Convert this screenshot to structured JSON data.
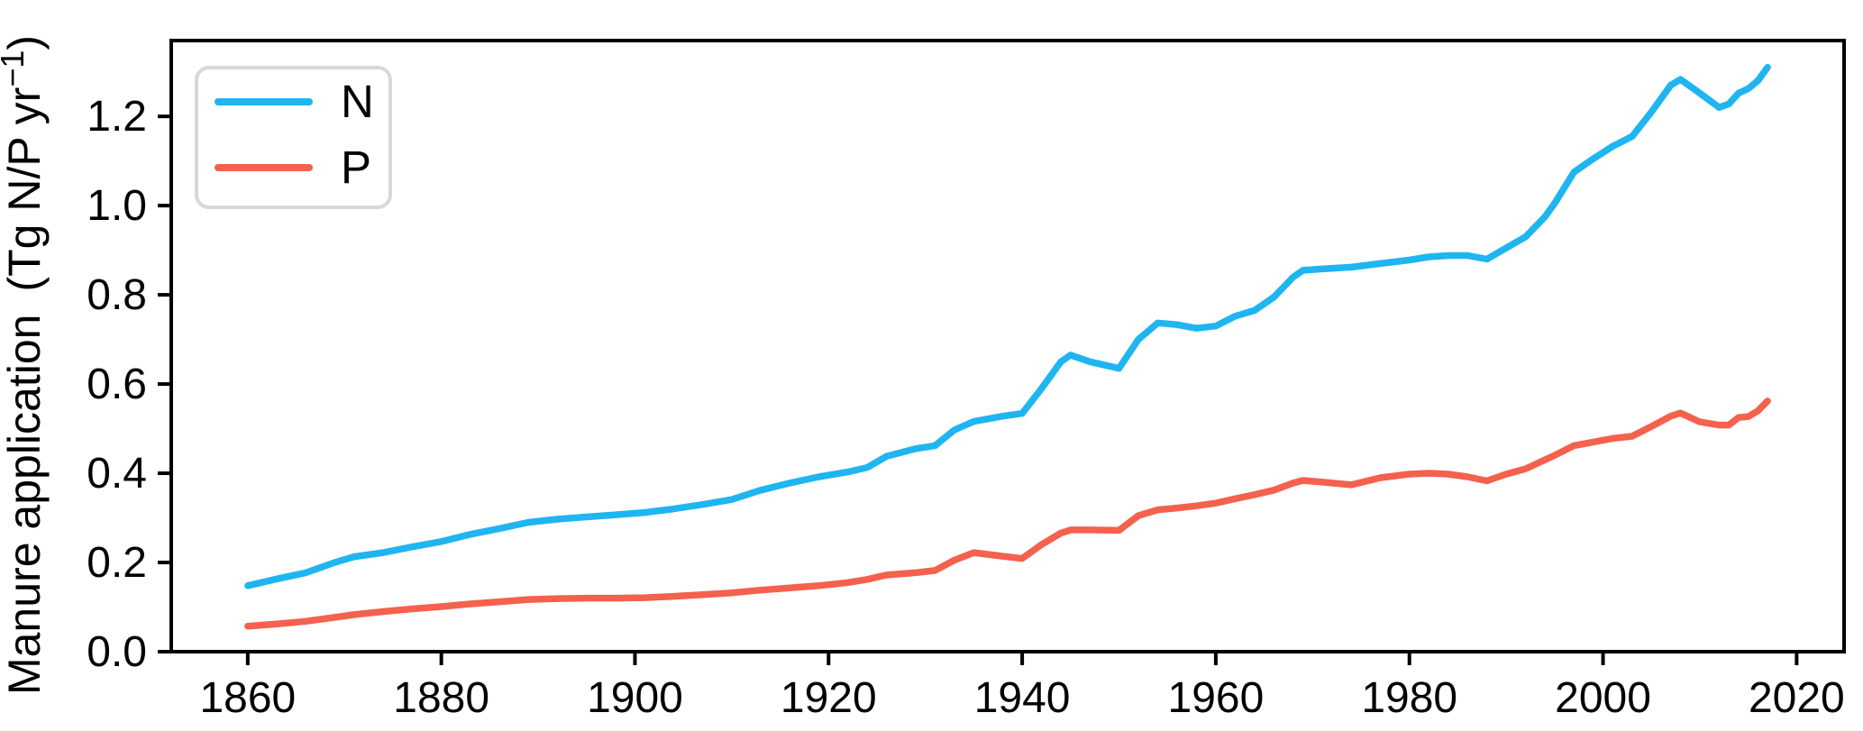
{
  "figure": {
    "background": "#ffffff",
    "spine_color": "#000000",
    "legend_border_color": "#d8d8d8"
  },
  "chart_data": {
    "type": "line",
    "title": "",
    "xlabel": "",
    "ylabel": "Manure application (Tg N/P yr⁻¹)",
    "ylabel_parts": {
      "main": "Manure application (Tg N/P yr",
      "sup": "−1",
      "close": ")"
    },
    "xlim": [
      1852.1,
      2024.9
    ],
    "ylim": [
      0,
      1.37
    ],
    "x_ticks": [
      1860,
      1880,
      1900,
      1920,
      1940,
      1960,
      1980,
      2000,
      2020
    ],
    "y_ticks": [
      0.0,
      0.2,
      0.4,
      0.6,
      0.8,
      1.0,
      1.2
    ],
    "grid": false,
    "legend": {
      "position": "upper-left",
      "entries": [
        {
          "label": "N",
          "color": "#1fb5f1"
        },
        {
          "label": "P",
          "color": "#f4614d"
        }
      ]
    },
    "x": [
      1860,
      1863,
      1866,
      1869,
      1871,
      1874,
      1877,
      1880,
      1883,
      1886,
      1889,
      1892,
      1895,
      1898,
      1901,
      1904,
      1907,
      1910,
      1913,
      1916,
      1919,
      1922,
      1924,
      1926,
      1929,
      1931,
      1933,
      1935,
      1938,
      1940,
      1942,
      1944,
      1945,
      1947,
      1950,
      1952,
      1954,
      1956,
      1958,
      1960,
      1962,
      1964,
      1966,
      1968,
      1969,
      1971,
      1974,
      1977,
      1980,
      1982,
      1984,
      1986,
      1988,
      1990,
      1992,
      1994,
      1995,
      1997,
      1999,
      2001,
      2003,
      2005,
      2007,
      2008,
      2010,
      2012,
      2013,
      2014,
      2015,
      2016,
      2017
    ],
    "series": [
      {
        "name": "N",
        "color": "#1fb5f1",
        "values": [
          0.148,
          0.163,
          0.177,
          0.2,
          0.213,
          0.222,
          0.235,
          0.247,
          0.263,
          0.276,
          0.29,
          0.297,
          0.302,
          0.307,
          0.312,
          0.32,
          0.33,
          0.341,
          0.362,
          0.378,
          0.392,
          0.403,
          0.413,
          0.438,
          0.455,
          0.462,
          0.497,
          0.516,
          0.528,
          0.534,
          0.59,
          0.65,
          0.665,
          0.65,
          0.635,
          0.7,
          0.737,
          0.733,
          0.725,
          0.73,
          0.752,
          0.765,
          0.795,
          0.84,
          0.855,
          0.858,
          0.862,
          0.87,
          0.878,
          0.885,
          0.888,
          0.888,
          0.88,
          0.905,
          0.93,
          0.975,
          1.005,
          1.075,
          1.105,
          1.133,
          1.155,
          1.21,
          1.27,
          1.283,
          1.252,
          1.22,
          1.228,
          1.252,
          1.262,
          1.28,
          1.31
        ]
      },
      {
        "name": "P",
        "color": "#f4614d",
        "values": [
          0.057,
          0.062,
          0.068,
          0.077,
          0.083,
          0.09,
          0.096,
          0.101,
          0.107,
          0.112,
          0.117,
          0.119,
          0.12,
          0.12,
          0.121,
          0.124,
          0.128,
          0.132,
          0.138,
          0.143,
          0.148,
          0.155,
          0.162,
          0.172,
          0.177,
          0.182,
          0.205,
          0.222,
          0.214,
          0.209,
          0.24,
          0.266,
          0.273,
          0.273,
          0.272,
          0.305,
          0.318,
          0.322,
          0.327,
          0.333,
          0.343,
          0.352,
          0.362,
          0.378,
          0.384,
          0.38,
          0.374,
          0.39,
          0.398,
          0.4,
          0.398,
          0.392,
          0.383,
          0.398,
          0.41,
          0.43,
          0.44,
          0.462,
          0.47,
          0.478,
          0.483,
          0.505,
          0.528,
          0.535,
          0.515,
          0.508,
          0.508,
          0.525,
          0.527,
          0.54,
          0.562
        ]
      }
    ]
  }
}
